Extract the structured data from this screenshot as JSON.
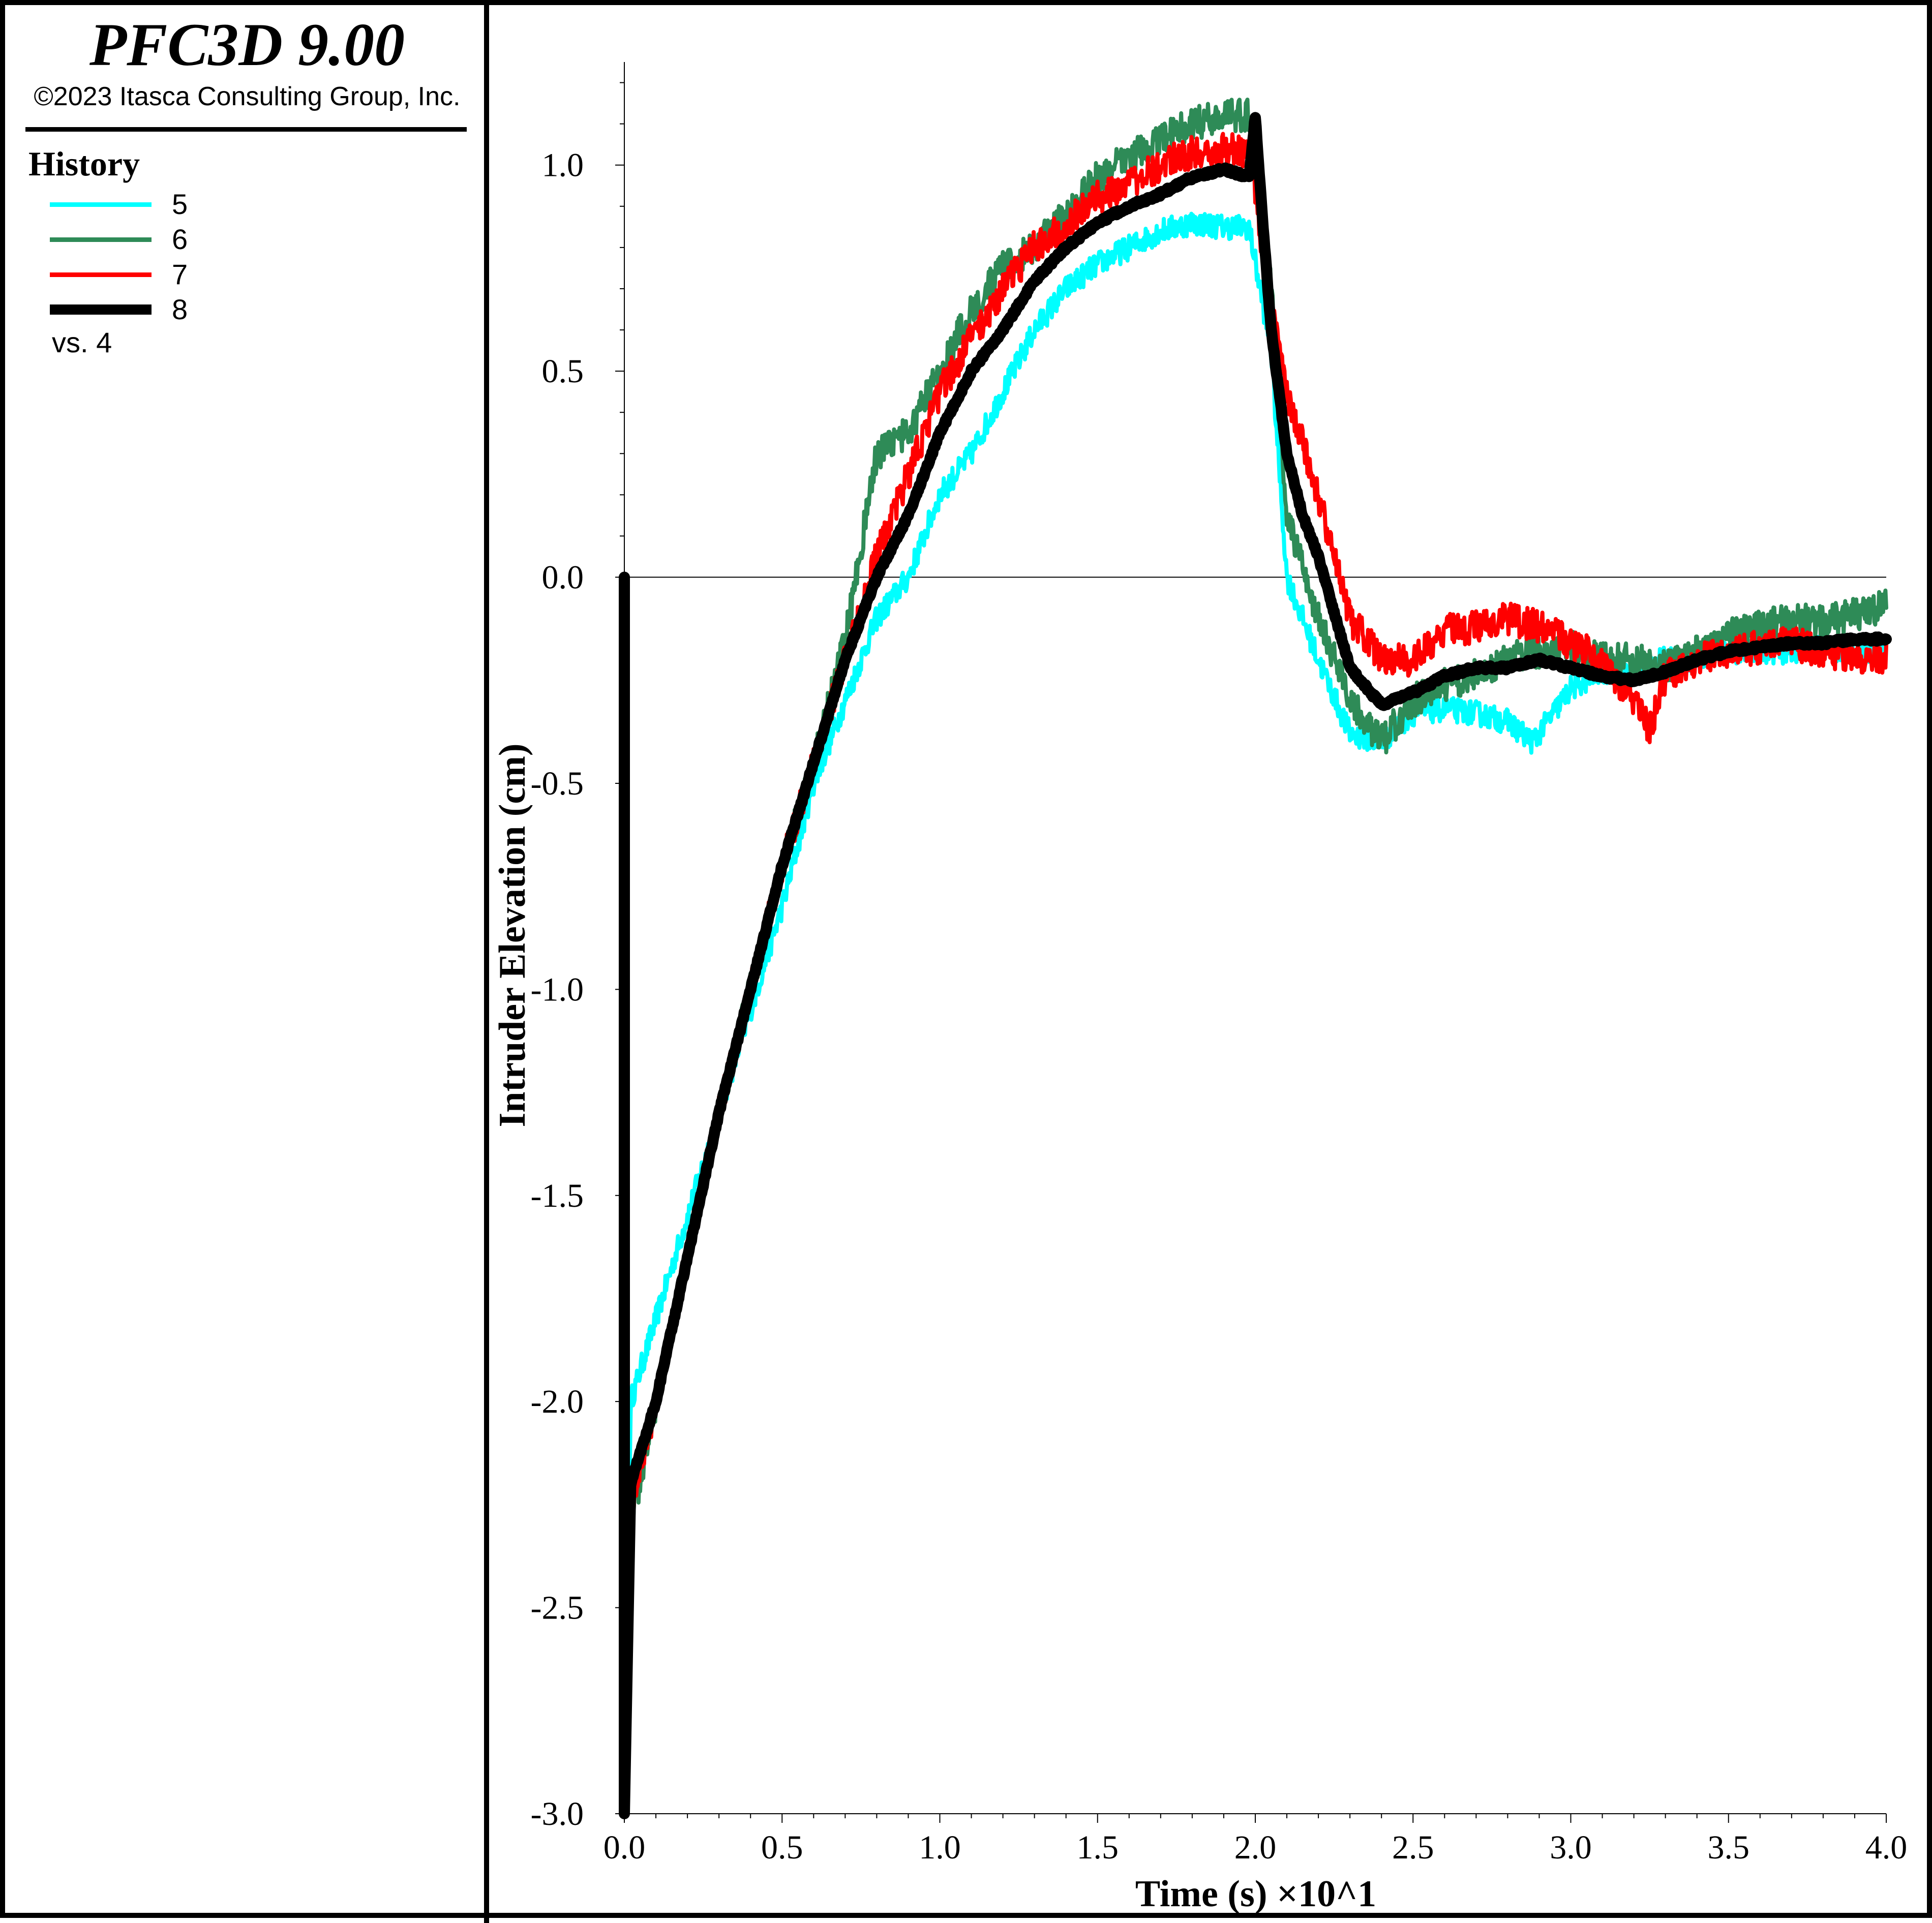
{
  "app": {
    "title": "PFC3D 9.00",
    "copyright": "©2023 Itasca Consulting Group, Inc."
  },
  "legend": {
    "heading": "History",
    "items": [
      {
        "label": "5",
        "color": "#00ffff",
        "weight": "normal"
      },
      {
        "label": "6",
        "color": "#2e8b57",
        "weight": "normal"
      },
      {
        "label": "7",
        "color": "#ff0000",
        "weight": "normal"
      },
      {
        "label": "8",
        "color": "#000000",
        "weight": "thick"
      }
    ],
    "vs_label": "vs. 4"
  },
  "chart_data": {
    "type": "line",
    "xlabel": "Time (s) ×10^1",
    "ylabel": "Intruder Elevation (cm)",
    "xlim": [
      0.0,
      4.0
    ],
    "ylim": [
      -3.0,
      1.25
    ],
    "x_ticks": [
      "0.0",
      "0.5",
      "1.0",
      "1.5",
      "2.0",
      "2.5",
      "3.0",
      "3.5",
      "4.0"
    ],
    "y_ticks": [
      "-3.0",
      "-2.5",
      "-2.0",
      "-1.5",
      "-1.0",
      "-0.5",
      "0.0",
      "0.5",
      "1.0"
    ],
    "zero_line": true,
    "grid": false,
    "series": [
      {
        "name": "5",
        "color": "#00ffff",
        "noise": 0.03,
        "x": [
          0.0,
          0.0,
          0.02,
          0.1,
          0.2,
          0.3,
          0.4,
          0.5,
          0.6,
          0.7,
          0.8,
          0.9,
          1.0,
          1.1,
          1.2,
          1.3,
          1.4,
          1.5,
          1.6,
          1.7,
          1.8,
          1.9,
          1.98,
          2.05,
          2.1,
          2.2,
          2.3,
          2.4,
          2.5,
          2.6,
          2.7,
          2.8,
          2.88,
          3.0,
          3.1,
          3.2,
          3.3,
          3.4,
          3.5,
          3.6,
          3.7,
          3.8,
          3.9,
          4.0
        ],
        "y": [
          0.0,
          -3.0,
          -2.0,
          -1.8,
          -1.55,
          -1.3,
          -1.05,
          -0.8,
          -0.5,
          -0.3,
          -0.1,
          0.0,
          0.2,
          0.3,
          0.45,
          0.6,
          0.7,
          0.76,
          0.8,
          0.84,
          0.86,
          0.85,
          0.85,
          0.55,
          0.0,
          -0.2,
          -0.38,
          -0.4,
          -0.33,
          -0.32,
          -0.33,
          -0.35,
          -0.4,
          -0.27,
          -0.23,
          -0.22,
          -0.2,
          -0.2,
          -0.18,
          -0.18,
          -0.18,
          -0.17,
          -0.18,
          -0.17
        ]
      },
      {
        "name": "6",
        "color": "#2e8b57",
        "noise": 0.04,
        "x": [
          0.0,
          0.0,
          0.02,
          0.1,
          0.2,
          0.3,
          0.4,
          0.5,
          0.6,
          0.7,
          0.8,
          0.9,
          1.0,
          1.1,
          1.2,
          1.3,
          1.4,
          1.5,
          1.6,
          1.7,
          1.8,
          1.9,
          1.98,
          2.05,
          2.1,
          2.2,
          2.3,
          2.4,
          2.5,
          2.6,
          2.7,
          2.8,
          2.9,
          3.0,
          3.1,
          3.2,
          3.3,
          3.4,
          3.5,
          3.6,
          3.7,
          3.8,
          3.9,
          4.0
        ],
        "y": [
          0.0,
          -3.0,
          -2.3,
          -2.0,
          -1.65,
          -1.3,
          -1.0,
          -0.7,
          -0.45,
          -0.15,
          0.3,
          0.35,
          0.5,
          0.65,
          0.75,
          0.8,
          0.88,
          0.97,
          1.02,
          1.06,
          1.1,
          1.12,
          1.12,
          0.7,
          0.15,
          -0.1,
          -0.3,
          -0.4,
          -0.3,
          -0.26,
          -0.24,
          -0.2,
          -0.18,
          -0.17,
          -0.2,
          -0.2,
          -0.22,
          -0.18,
          -0.14,
          -0.12,
          -0.1,
          -0.11,
          -0.09,
          -0.07
        ]
      },
      {
        "name": "7",
        "color": "#ff0000",
        "noise": 0.04,
        "x": [
          0.0,
          0.0,
          0.02,
          0.1,
          0.2,
          0.3,
          0.4,
          0.5,
          0.6,
          0.7,
          0.8,
          0.9,
          1.0,
          1.1,
          1.2,
          1.3,
          1.4,
          1.5,
          1.6,
          1.7,
          1.8,
          1.9,
          1.98,
          2.05,
          2.1,
          2.2,
          2.3,
          2.4,
          2.5,
          2.6,
          2.7,
          2.8,
          2.9,
          3.0,
          3.1,
          3.2,
          3.25,
          3.3,
          3.4,
          3.5,
          3.6,
          3.7,
          3.8,
          3.9,
          4.0
        ],
        "y": [
          0.0,
          -3.0,
          -2.25,
          -2.0,
          -1.65,
          -1.3,
          -1.0,
          -0.7,
          -0.45,
          -0.2,
          0.05,
          0.25,
          0.45,
          0.58,
          0.7,
          0.8,
          0.86,
          0.92,
          0.96,
          1.0,
          1.03,
          1.04,
          1.03,
          0.65,
          0.45,
          0.2,
          -0.1,
          -0.2,
          -0.2,
          -0.13,
          -0.12,
          -0.1,
          -0.12,
          -0.16,
          -0.2,
          -0.3,
          -0.37,
          -0.24,
          -0.2,
          -0.18,
          -0.17,
          -0.16,
          -0.18,
          -0.19,
          -0.2
        ]
      },
      {
        "name": "8",
        "color": "#000000",
        "noise": 0.005,
        "thick": true,
        "x": [
          0.0,
          0.0,
          0.02,
          0.1,
          0.2,
          0.3,
          0.4,
          0.5,
          0.6,
          0.7,
          0.8,
          0.9,
          1.0,
          1.1,
          1.2,
          1.3,
          1.4,
          1.5,
          1.6,
          1.7,
          1.8,
          1.9,
          1.98,
          2.0,
          2.02,
          2.05,
          2.1,
          2.15,
          2.2,
          2.3,
          2.4,
          2.5,
          2.6,
          2.7,
          2.8,
          2.9,
          3.0,
          3.1,
          3.2,
          3.3,
          3.4,
          3.5,
          3.6,
          3.7,
          3.8,
          3.9,
          4.0
        ],
        "y": [
          0.0,
          -3.0,
          -2.2,
          -2.0,
          -1.65,
          -1.3,
          -1.0,
          -0.7,
          -0.45,
          -0.2,
          0.0,
          0.15,
          0.35,
          0.5,
          0.6,
          0.72,
          0.8,
          0.86,
          0.9,
          0.93,
          0.97,
          0.99,
          0.97,
          1.12,
          0.9,
          0.6,
          0.3,
          0.15,
          0.05,
          -0.22,
          -0.31,
          -0.28,
          -0.24,
          -0.22,
          -0.22,
          -0.2,
          -0.22,
          -0.24,
          -0.25,
          -0.23,
          -0.2,
          -0.18,
          -0.17,
          -0.16,
          -0.16,
          -0.15,
          -0.15
        ]
      }
    ]
  }
}
